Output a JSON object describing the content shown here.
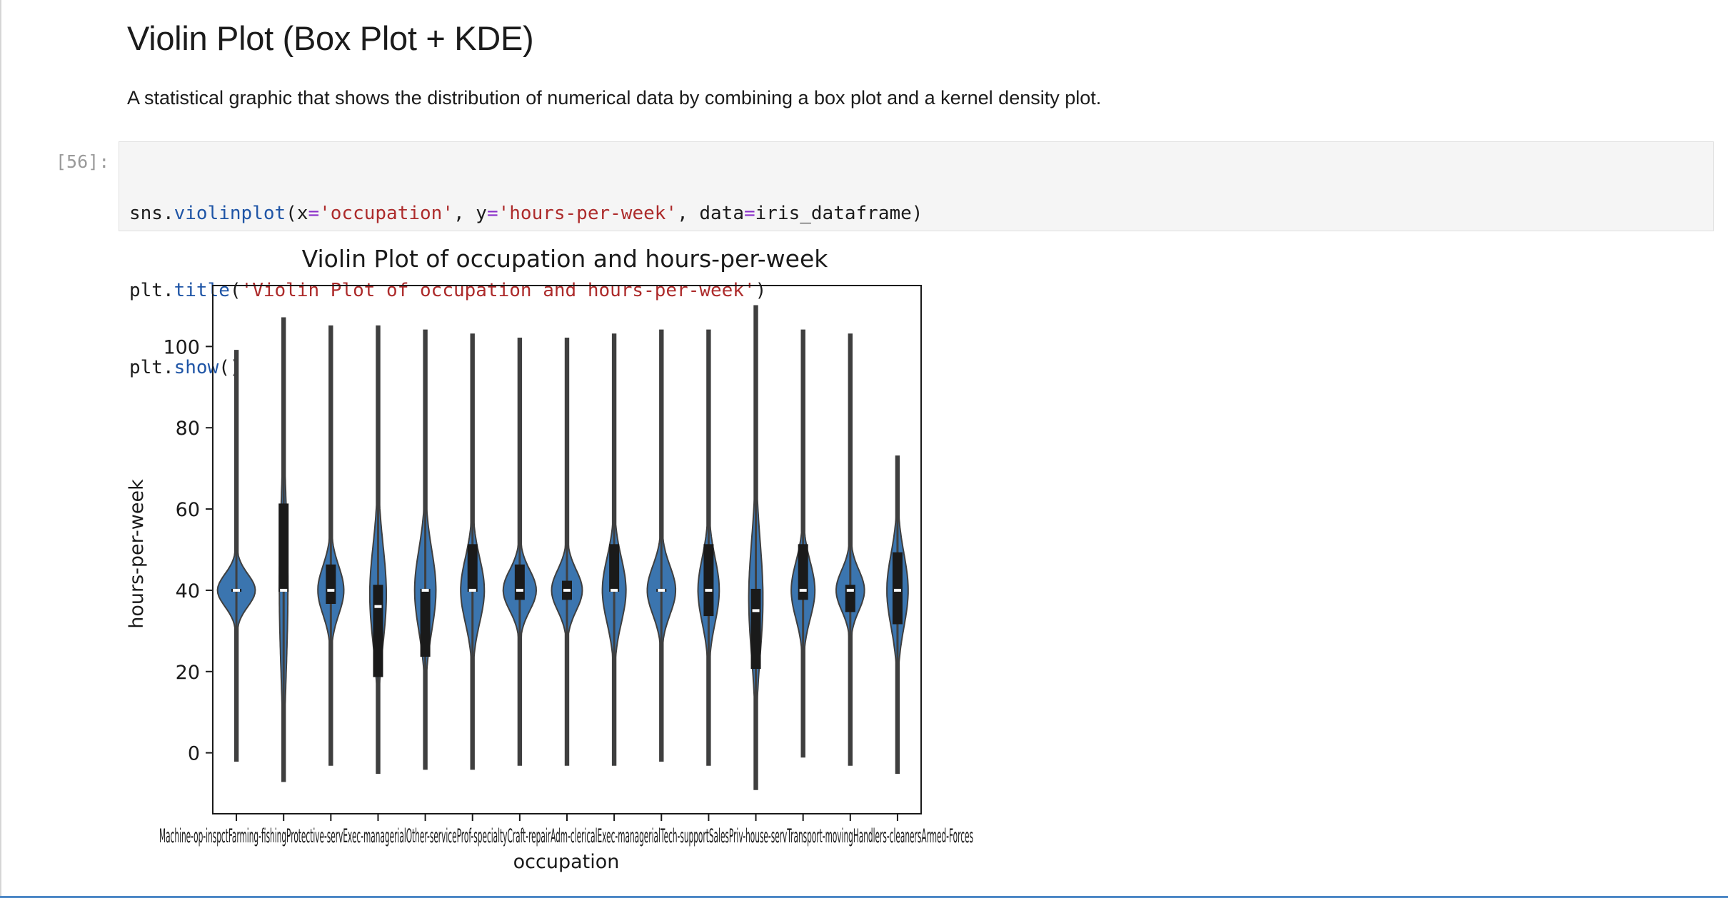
{
  "markdown": {
    "heading": "Violin Plot (Box Plot + KDE)",
    "paragraph": "A statistical graphic that shows the distribution of numerical data by combining a box plot and a kernel density plot."
  },
  "code_cell": {
    "prompt": "[56]:",
    "lines": [
      "sns.violinplot(x='occupation', y='hours-per-week', data=iris_dataframe)",
      "plt.title('Violin Plot of occupation and hours-per-week')",
      "plt.show()"
    ]
  },
  "colors": {
    "violin_fill": "#3b75af",
    "box_color": "#1a1a1a",
    "median_color": "#ffffff",
    "prompt_color": "#9a9a9a",
    "accent_rule": "#4a86c5"
  },
  "chart_data": {
    "type": "violin",
    "title": "Violin Plot of occupation and hours-per-week",
    "xlabel": "occupation",
    "ylabel": "hours-per-week",
    "ylim": [
      -15,
      115
    ],
    "yticks": [
      0,
      20,
      40,
      60,
      80,
      100
    ],
    "grid": false,
    "legend": "none",
    "xtick_label_text": "Machine-op-inspctFarming-fishingProtective-servExec-managerialOther-serviceProf-specialtyCraft-repairAdm-clericalExec-managerialTech-supportSalesPriv-house-servTransport-movingHandlers-cleanersArmed-Forces",
    "categories": [
      {
        "min": -2,
        "max": 99,
        "q1": 40,
        "median": 40,
        "q3": 40,
        "peak": 40,
        "spread": 4,
        "width": 0.8
      },
      {
        "min": -7,
        "max": 107,
        "q1": 40,
        "median": 40,
        "q3": 61,
        "peak": 40,
        "spread": 20,
        "width": 0.18
      },
      {
        "min": -3,
        "max": 105,
        "q1": 37,
        "median": 40,
        "q3": 46,
        "peak": 40,
        "spread": 6,
        "width": 0.55
      },
      {
        "min": -5,
        "max": 105,
        "q1": 19,
        "median": 36,
        "q3": 41,
        "peak": 39,
        "spread": 12,
        "width": 0.35
      },
      {
        "min": -4,
        "max": 104,
        "q1": 24,
        "median": 40,
        "q3": 40,
        "peak": 40,
        "spread": 10,
        "width": 0.45
      },
      {
        "min": -4,
        "max": 103,
        "q1": 40,
        "median": 40,
        "q3": 51,
        "peak": 40,
        "spread": 8,
        "width": 0.5
      },
      {
        "min": -3,
        "max": 102,
        "q1": 38,
        "median": 40,
        "q3": 46,
        "peak": 40,
        "spread": 5,
        "width": 0.7
      },
      {
        "min": -3,
        "max": 102,
        "q1": 38,
        "median": 40,
        "q3": 42,
        "peak": 40,
        "spread": 5,
        "width": 0.65
      },
      {
        "min": -3,
        "max": 103,
        "q1": 40,
        "median": 40,
        "q3": 51,
        "peak": 40,
        "spread": 8,
        "width": 0.5
      },
      {
        "min": -2,
        "max": 104,
        "q1": 40,
        "median": 40,
        "q3": 40,
        "peak": 40,
        "spread": 6,
        "width": 0.6
      },
      {
        "min": -3,
        "max": 104,
        "q1": 34,
        "median": 40,
        "q3": 51,
        "peak": 40,
        "spread": 8,
        "width": 0.45
      },
      {
        "min": -9,
        "max": 110,
        "q1": 21,
        "median": 35,
        "q3": 40,
        "peak": 38,
        "spread": 14,
        "width": 0.3
      },
      {
        "min": -1,
        "max": 104,
        "q1": 38,
        "median": 40,
        "q3": 51,
        "peak": 40,
        "spread": 7,
        "width": 0.5
      },
      {
        "min": -3,
        "max": 103,
        "q1": 35,
        "median": 40,
        "q3": 41,
        "peak": 40,
        "spread": 5,
        "width": 0.6
      },
      {
        "min": -5,
        "max": 73,
        "q1": 32,
        "median": 40,
        "q3": 49,
        "peak": 40,
        "spread": 9,
        "width": 0.45
      }
    ]
  }
}
